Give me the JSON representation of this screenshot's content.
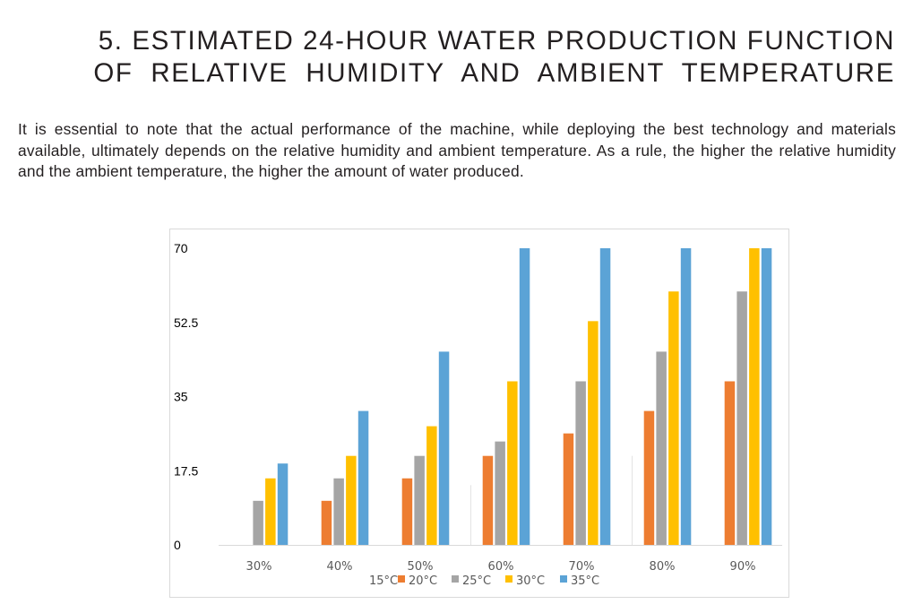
{
  "heading": {
    "line1": "5. ESTIMATED 24-HOUR WATER PRODUCTION FUNCTION",
    "line2": "OF RELATIVE HUMIDITY AND AMBIENT TEMPERATURE"
  },
  "paragraph": "It is essential to note that the actual performance of the machine, while deploying the best technology and materials available, ultimately depends on the relative humidity and ambient temperature. As a rule, the higher the relative humidity and the ambient temperature, the higher the amount of water produced.",
  "chart_data": {
    "type": "bar",
    "title": "",
    "xlabel": "",
    "ylabel": "",
    "ylim": [
      0,
      70
    ],
    "yticks": [
      "0",
      "17.5",
      "35",
      "52.5",
      "70"
    ],
    "grid": false,
    "legend": "bottom",
    "categories": [
      "30%",
      "40%",
      "50%",
      "60%",
      "70%",
      "80%",
      "90%"
    ],
    "series": [
      {
        "name": "15°C",
        "color": "#f2f2f2",
        "values": [
          0,
          0,
          0,
          14.1,
          0,
          21,
          0
        ]
      },
      {
        "name": "20°C",
        "color": "#ed7d31",
        "values": [
          0,
          10.4,
          15.7,
          21,
          26.3,
          31.6,
          38.6
        ]
      },
      {
        "name": "25°C",
        "color": "#a5a5a5",
        "values": [
          10.4,
          15.7,
          21,
          24.4,
          38.6,
          45.6,
          59.8
        ]
      },
      {
        "name": "30°C",
        "color": "#ffc000",
        "values": [
          15.7,
          21,
          28,
          38.6,
          52.8,
          59.8,
          70
        ]
      },
      {
        "name": "35°C",
        "color": "#5ba3d6",
        "values": [
          19.2,
          31.6,
          45.6,
          70,
          70,
          70,
          70
        ]
      }
    ]
  }
}
